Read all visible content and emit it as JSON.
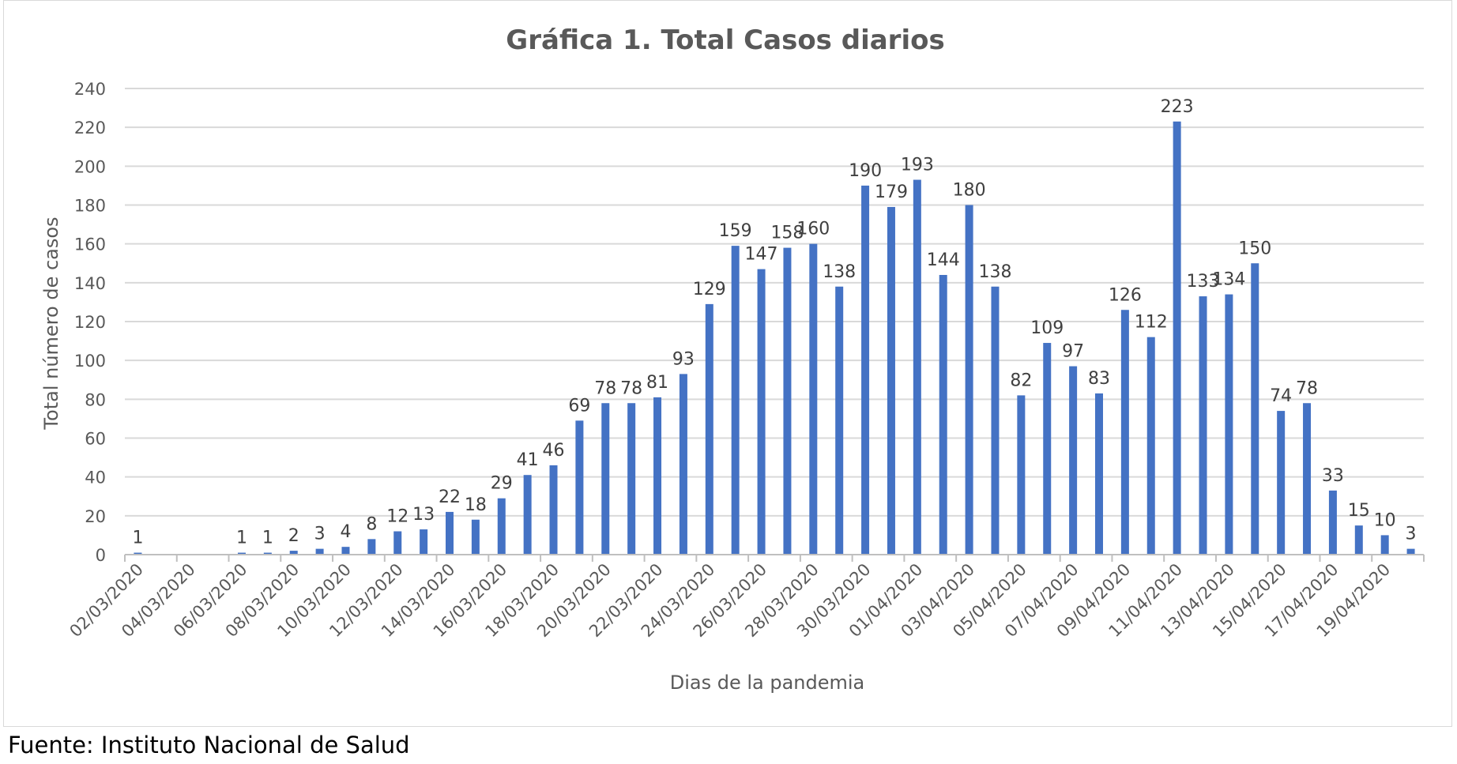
{
  "source": "Fuente: Instituto Nacional de Salud",
  "chart_data": {
    "type": "bar",
    "title": "Gráfica 1. Total Casos diarios",
    "xlabel": "Dias de la pandemia",
    "ylabel": "Total número de casos",
    "ylim": [
      0,
      240
    ],
    "yticks": [
      0,
      20,
      40,
      60,
      80,
      100,
      120,
      140,
      160,
      180,
      200,
      220,
      240
    ],
    "grid": true,
    "legend": "none",
    "bar_color": "#4472C4",
    "categories": [
      "02/03/2020",
      "03/03/2020",
      "04/03/2020",
      "05/03/2020",
      "06/03/2020",
      "07/03/2020",
      "08/03/2020",
      "09/03/2020",
      "10/03/2020",
      "11/03/2020",
      "12/03/2020",
      "13/03/2020",
      "14/03/2020",
      "15/03/2020",
      "16/03/2020",
      "17/03/2020",
      "18/03/2020",
      "19/03/2020",
      "20/03/2020",
      "21/03/2020",
      "22/03/2020",
      "23/03/2020",
      "24/03/2020",
      "25/03/2020",
      "26/03/2020",
      "27/03/2020",
      "28/03/2020",
      "29/03/2020",
      "30/03/2020",
      "31/03/2020",
      "01/04/2020",
      "02/04/2020",
      "03/04/2020",
      "04/04/2020",
      "05/04/2020",
      "06/04/2020",
      "07/04/2020",
      "08/04/2020",
      "09/04/2020",
      "10/04/2020",
      "11/04/2020",
      "12/04/2020",
      "13/04/2020",
      "14/04/2020",
      "15/04/2020",
      "16/04/2020",
      "17/04/2020",
      "18/04/2020",
      "19/04/2020",
      "20/04/2020"
    ],
    "x_tick_labels": [
      "02/03/2020",
      "04/03/2020",
      "06/03/2020",
      "08/03/2020",
      "10/03/2020",
      "12/03/2020",
      "14/03/2020",
      "16/03/2020",
      "18/03/2020",
      "20/03/2020",
      "22/03/2020",
      "24/03/2020",
      "26/03/2020",
      "28/03/2020",
      "30/03/2020",
      "01/04/2020",
      "03/04/2020",
      "05/04/2020",
      "07/04/2020",
      "09/04/2020",
      "11/04/2020",
      "13/04/2020",
      "15/04/2020",
      "17/04/2020",
      "19/04/2020"
    ],
    "values": [
      1,
      null,
      null,
      null,
      1,
      1,
      2,
      3,
      4,
      8,
      12,
      13,
      22,
      18,
      29,
      41,
      46,
      69,
      78,
      78,
      81,
      93,
      129,
      159,
      147,
      158,
      160,
      138,
      190,
      179,
      193,
      144,
      180,
      138,
      82,
      109,
      97,
      83,
      126,
      112,
      223,
      133,
      134,
      150,
      74,
      78,
      33,
      15,
      10,
      3
    ]
  }
}
